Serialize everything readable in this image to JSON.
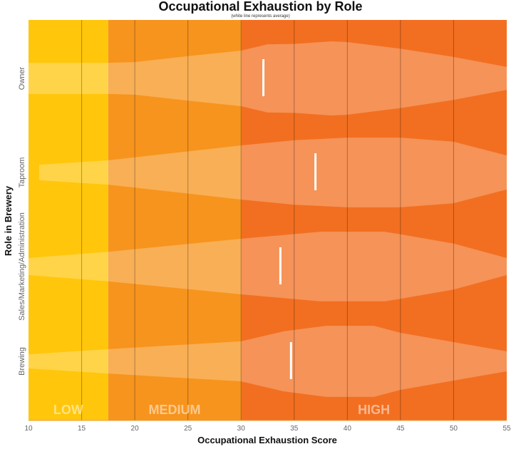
{
  "chart_data": {
    "type": "violin",
    "title": "Occupational Exhaustion by Role",
    "subtitle": "(white line represents average)",
    "xlabel": "Occupational Exhaustion Score",
    "ylabel": "Role in Brewery",
    "xlim": [
      10,
      55
    ],
    "xticks": [
      10,
      15,
      20,
      25,
      30,
      35,
      40,
      45,
      50,
      55
    ],
    "grid": "vertical",
    "zones": [
      {
        "label": "LOW",
        "from": 10,
        "to": 17.5,
        "color": "#FFC60B"
      },
      {
        "label": "MEDIUM",
        "from": 17.5,
        "to": 30,
        "color": "#F7941D"
      },
      {
        "label": "HIGH",
        "from": 30,
        "to": 55,
        "color": "#F26F21"
      }
    ],
    "series": [
      {
        "name": "Owner",
        "mean": 32.1,
        "density": [
          [
            10,
            0.42
          ],
          [
            17.5,
            0.42
          ],
          [
            20,
            0.44
          ],
          [
            25,
            0.6
          ],
          [
            30,
            0.75
          ],
          [
            32.5,
            0.92
          ],
          [
            35,
            0.93
          ],
          [
            38.5,
            1.0
          ],
          [
            40,
            0.98
          ],
          [
            45,
            0.8
          ],
          [
            50,
            0.58
          ],
          [
            55,
            0.31
          ]
        ]
      },
      {
        "name": "Taproom",
        "mean": 37.0,
        "density": [
          [
            11,
            0.21
          ],
          [
            17.5,
            0.33
          ],
          [
            30,
            0.73
          ],
          [
            35,
            0.87
          ],
          [
            40,
            0.94
          ],
          [
            45,
            0.94
          ],
          [
            50,
            0.83
          ],
          [
            55,
            0.46
          ]
        ]
      },
      {
        "name": "Sales/Marketing/Administration",
        "mean": 33.7,
        "density": [
          [
            10,
            0.23
          ],
          [
            17.5,
            0.4
          ],
          [
            30,
            0.75
          ],
          [
            37.5,
            0.94
          ],
          [
            43.5,
            0.94
          ],
          [
            45,
            0.87
          ],
          [
            50,
            0.62
          ],
          [
            55,
            0.23
          ]
        ]
      },
      {
        "name": "Brewing",
        "mean": 34.7,
        "density": [
          [
            10,
            0.19
          ],
          [
            17.5,
            0.33
          ],
          [
            30,
            0.54
          ],
          [
            34,
            0.81
          ],
          [
            38,
            0.96
          ],
          [
            42.5,
            0.96
          ],
          [
            45,
            0.77
          ],
          [
            50,
            0.52
          ],
          [
            55,
            0.27
          ]
        ]
      }
    ]
  }
}
